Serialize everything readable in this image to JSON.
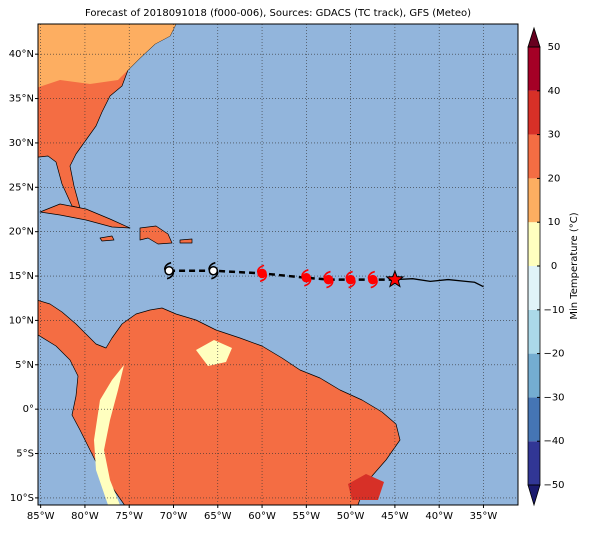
{
  "chart_data": {
    "type": "map",
    "title": "Forecast of 2018091018 (f000-006), Sources: GDACS (TC track), GFS (Meteo)",
    "xlim": [
      -85.3,
      -31.1
    ],
    "ylim": [
      -10.8,
      43.4
    ],
    "xticks": [
      {
        "value": -85,
        "label": "85°W"
      },
      {
        "value": -80,
        "label": "80°W"
      },
      {
        "value": -75,
        "label": "75°W"
      },
      {
        "value": -70,
        "label": "70°W"
      },
      {
        "value": -65,
        "label": "65°W"
      },
      {
        "value": -60,
        "label": "60°W"
      },
      {
        "value": -55,
        "label": "55°W"
      },
      {
        "value": -50,
        "label": "50°W"
      },
      {
        "value": -45,
        "label": "45°W"
      },
      {
        "value": -40,
        "label": "40°W"
      },
      {
        "value": -35,
        "label": "35°W"
      }
    ],
    "yticks": [
      {
        "value": -10,
        "label": "10°S"
      },
      {
        "value": -5,
        "label": "5°S"
      },
      {
        "value": 0,
        "label": "0°"
      },
      {
        "value": 5,
        "label": "5°N"
      },
      {
        "value": 10,
        "label": "10°N"
      },
      {
        "value": 15,
        "label": "15°N"
      },
      {
        "value": 20,
        "label": "20°N"
      },
      {
        "value": 25,
        "label": "25°N"
      },
      {
        "value": 30,
        "label": "30°N"
      },
      {
        "value": 35,
        "label": "35°N"
      },
      {
        "value": 40,
        "label": "40°N"
      }
    ],
    "grid": true,
    "track": {
      "lon": [
        -70.5,
        -65.5,
        -60,
        -55,
        -52.5,
        -50,
        -47.5
      ],
      "lat": [
        15.6,
        15.6,
        15.3,
        14.8,
        14.6,
        14.6,
        14.6
      ],
      "colors": [
        "#000000",
        "#000000",
        "#ff0000",
        "#ff0000",
        "#ff0000",
        "#ff0000",
        "#ff0000"
      ]
    },
    "current": {
      "lon": -45,
      "lat": 14.6,
      "color": "#ff0000"
    },
    "forecast_line": {
      "lon": [
        -45,
        -43,
        -41,
        -39,
        -37,
        -36,
        -35
      ],
      "lat": [
        14.6,
        14.7,
        14.4,
        14.6,
        14.4,
        14.3,
        13.8
      ]
    },
    "colorbar": {
      "label": "Min Temperature (°C)",
      "limits": [
        -50,
        50
      ],
      "ticks": [
        {
          "value": -50,
          "label": "−50"
        },
        {
          "value": -40,
          "label": "−40"
        },
        {
          "value": -30,
          "label": "−30"
        },
        {
          "value": -20,
          "label": "−20"
        },
        {
          "value": -10,
          "label": "−10"
        },
        0,
        10,
        20,
        30,
        40,
        50
      ],
      "colors": [
        "#313695",
        "#4575b4",
        "#74add1",
        "#abd9e9",
        "#e0f3f8",
        "#ffffbf",
        "#fdae61",
        "#f46d43",
        "#d73027",
        "#a50026"
      ],
      "under": "#1a1a6e",
      "over": "#67001f"
    }
  }
}
